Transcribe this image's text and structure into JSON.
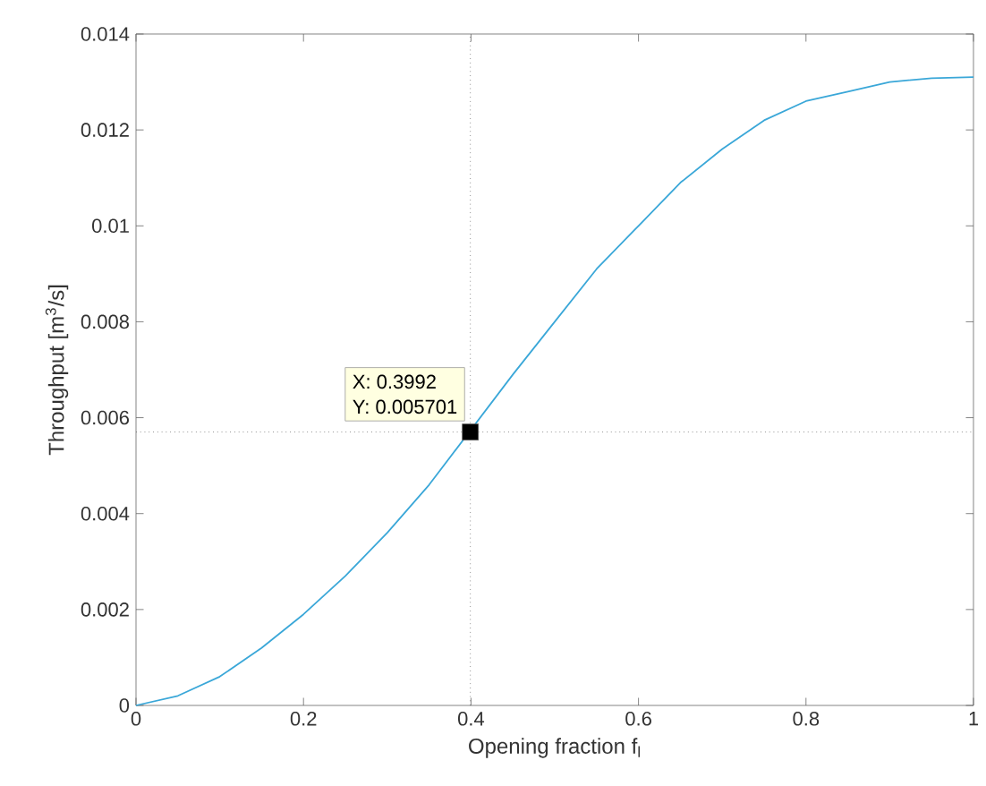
{
  "chart_data": {
    "type": "line",
    "xlabel": "Opening fraction f$_{l}$",
    "ylabel": "Throughput [m$^{3}$/s]",
    "xlim": [
      0,
      1
    ],
    "ylim": [
      0,
      0.014
    ],
    "xticks": [
      0,
      0.2,
      0.4,
      0.6,
      0.8,
      1
    ],
    "yticks": [
      0,
      0.002,
      0.004,
      0.006,
      0.008,
      0.01,
      0.012,
      0.014
    ],
    "grid": false,
    "series": [
      {
        "color": "#3aa7d8",
        "x": [
          0,
          0.05,
          0.1,
          0.15,
          0.2,
          0.25,
          0.3,
          0.35,
          0.45,
          0.5,
          0.55,
          0.6,
          0.65,
          0.7,
          0.75,
          0.8,
          0.85,
          0.9,
          0.95,
          1
        ],
        "values": [
          0,
          0.0002,
          0.0006,
          0.0012,
          0.0019,
          0.0027,
          0.0036,
          0.0046,
          0.0069,
          0.008,
          0.0091,
          0.01,
          0.0109,
          0.0116,
          0.0122,
          0.0126,
          0.0128,
          0.013,
          0.01308,
          0.0131
        ]
      },
      {
        "type": "scatter",
        "marker": "square",
        "color": "#000000",
        "x": [
          0.3992
        ],
        "values": [
          0.005701
        ]
      }
    ],
    "ref_lines": [
      {
        "axis": "x",
        "value": 0.3992,
        "color": "#555555",
        "line_style": "dotted"
      },
      {
        "axis": "y",
        "value": 0.005701,
        "color": "#555555",
        "line_style": "dotted"
      }
    ],
    "annotations": [
      {
        "text": "X: 0.3992",
        "x": 0.3992,
        "y": 0.005701
      },
      {
        "text": "Y: 0.005701",
        "x": 0.3992,
        "y": 0.005701
      }
    ]
  }
}
